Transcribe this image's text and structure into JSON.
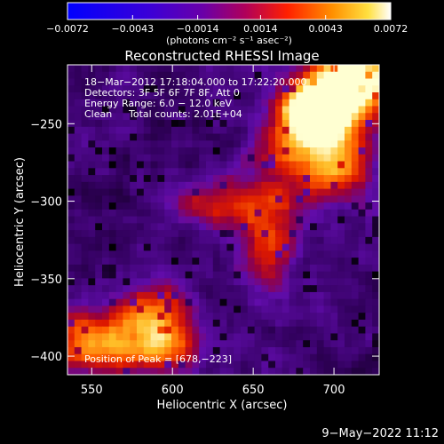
{
  "chart_data": {
    "type": "heatmap",
    "title": "Reconstructed RHESSI Image",
    "xlabel": "Heliocentric X (arcsec)",
    "ylabel": "Heliocentric Y (arcsec)",
    "xlim": [
      535,
      728
    ],
    "ylim": [
      -412,
      -212
    ],
    "x_ticks": [
      550,
      600,
      650,
      700
    ],
    "x_tick_labels": [
      "550",
      "600",
      "650",
      "700"
    ],
    "y_ticks": [
      -250,
      -300,
      -350,
      -400
    ],
    "y_tick_labels": [
      "−250",
      "−300",
      "−350",
      "−400"
    ],
    "colorbar": {
      "min": -0.0072,
      "max": 0.0072,
      "ticks": [
        -0.0072,
        -0.0043,
        -0.0014,
        0.0014,
        0.0043,
        0.0072
      ],
      "tick_labels": [
        "−0.0072",
        "−0.0043",
        "−0.0014",
        "0.0014",
        "0.0043",
        "0.0072"
      ],
      "units": "(photons cm⁻² s⁻¹ asec⁻²)"
    },
    "annotations": {
      "time_range": "18−Mar−2012 17:18:04.000 to 17:22:20.000",
      "detectors": "Detectors: 3F 5F 6F 7F 8F, Att 0",
      "energy_range": "Energy Range: 6.0 − 12.0 keV",
      "algorithm": "Clean",
      "total_counts": "Total counts: 2.01E+04",
      "peak_position": "Position of Peak = [678,−223]"
    },
    "peak": [
      678,
      -223
    ]
  },
  "footer": {
    "timestamp": "9−May−2022 11:12"
  }
}
